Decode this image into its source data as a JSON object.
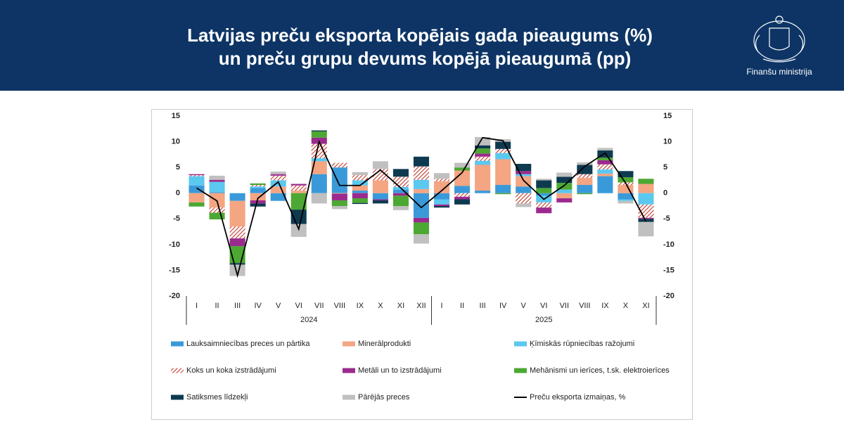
{
  "header": {
    "title_lines": [
      "Latvijas preču eksporta kopējais gada pieaugums (%)",
      "un preču grupu devums kopējā pieaugumā (pp)"
    ],
    "logo_text": "Finanšu ministrija"
  },
  "chart_data": {
    "type": "bar",
    "stacked": true,
    "groups": [
      {
        "label": "2024",
        "categories": [
          "I",
          "II",
          "III",
          "IV",
          "V",
          "VI",
          "VII",
          "VIII",
          "IX",
          "X",
          "XI",
          "XII"
        ]
      },
      {
        "label": "2025",
        "categories": [
          "I",
          "II",
          "III",
          "IV",
          "V",
          "VI",
          "VII",
          "VIII",
          "IX",
          "X",
          "XI"
        ]
      }
    ],
    "ylim": [
      -20,
      15
    ],
    "yticks": [
      -20,
      -15,
      -10,
      -5,
      0,
      5,
      10,
      15
    ],
    "y2lim": [
      -20,
      15
    ],
    "y2ticks": [
      -20,
      -15,
      -10,
      -5,
      0,
      5,
      10,
      15
    ],
    "series": [
      {
        "name": "Lauksaimniecības preces un pārtika",
        "color": "#3a9ad9",
        "values": [
          1.5,
          0.2,
          -1.5,
          1.0,
          -1.5,
          0,
          3.7,
          5.0,
          0.5,
          -1.2,
          0.7,
          -4.8,
          -1.2,
          1.4,
          0.5,
          1.6,
          1.3,
          -0.5,
          0,
          1.6,
          3.3,
          -1.2,
          0
        ]
      },
      {
        "name": "Minerālprodukti",
        "color": "#f4a582",
        "values": [
          -1.8,
          -2.8,
          -5.0,
          -1.4,
          1.3,
          0.5,
          2.5,
          -0.1,
          1.0,
          2.5,
          0,
          0.8,
          2.3,
          3.0,
          5.0,
          5.0,
          2.0,
          0,
          -1.0,
          1.4,
          0.5,
          1.6,
          1.8
        ]
      },
      {
        "name": "Ķīmiskās rūpniecības ražojumi",
        "color": "#5bc8f0",
        "values": [
          1.8,
          2.0,
          0,
          0.3,
          1.2,
          0,
          0.6,
          0,
          1.0,
          0,
          0.5,
          1.8,
          -1.0,
          0,
          0.8,
          1.2,
          0.4,
          -1.3,
          0.7,
          0,
          0.8,
          -0.3,
          -2.2
        ]
      },
      {
        "name": "Koks un koka izstrādājumi",
        "color": "#c0392b",
        "hatch": true,
        "values": [
          0.2,
          -1.0,
          -2.3,
          0.3,
          0.9,
          1.0,
          2.8,
          0.9,
          1.0,
          2.2,
          2.0,
          2.6,
          0.5,
          -0.7,
          0.8,
          0.8,
          -2.0,
          -1.0,
          0,
          0.7,
          1.0,
          0.5,
          -2.6
        ]
      },
      {
        "name": "Metāli un to izstrādājumi",
        "color": "#9b2a8f",
        "values": [
          0.2,
          0.4,
          -1.5,
          -0.6,
          0.3,
          0.3,
          1.2,
          -1.3,
          -1.0,
          -0.2,
          -0.5,
          -0.9,
          -0.3,
          -0.5,
          0.6,
          0,
          0.6,
          -1.1,
          -0.8,
          0,
          0.8,
          0,
          -0.2
        ]
      },
      {
        "name": "Mehānismi un ierīces, t.sk. elektroierīces",
        "color": "#4ca832",
        "values": [
          -0.8,
          -1.3,
          -3.3,
          0.3,
          0,
          -3.2,
          1.2,
          -1.1,
          -0.9,
          0,
          -2.0,
          -2.3,
          0,
          0.6,
          1.0,
          -0.2,
          0,
          1.0,
          1.3,
          -0.2,
          0.5,
          1.0,
          1.0
        ]
      },
      {
        "name": "Satiksmes līdzekļi",
        "color": "#0e3a50",
        "values": [
          0,
          0,
          -0.3,
          -0.6,
          0,
          -2.8,
          0.2,
          0,
          -0.2,
          -0.6,
          1.5,
          1.9,
          -0.3,
          -1.0,
          0.6,
          1.4,
          1.4,
          1.5,
          1.2,
          1.8,
          1.4,
          1.2,
          -0.6
        ]
      },
      {
        "name": "Pārējās preces",
        "color": "#c0c0c0",
        "values": [
          0,
          0.8,
          -2.2,
          0,
          0.5,
          -2.5,
          -2.0,
          -0.6,
          0.6,
          1.5,
          -0.8,
          -1.8,
          1.1,
          0.9,
          1.6,
          0.5,
          -0.7,
          0.3,
          0.8,
          0.5,
          0.5,
          -0.5,
          -2.8
        ]
      },
      {
        "name": "Preču eksporta izmaiņas, %",
        "type": "line",
        "color": "#000000",
        "values": [
          1.0,
          -1.5,
          -16.0,
          -1.0,
          2.2,
          -7.0,
          10.0,
          1.5,
          1.5,
          4.5,
          1.0,
          -2.8,
          0.5,
          4.0,
          10.8,
          10.2,
          2.5,
          -1.2,
          1.5,
          5.2,
          7.8,
          2.0,
          -5.5
        ]
      }
    ]
  }
}
